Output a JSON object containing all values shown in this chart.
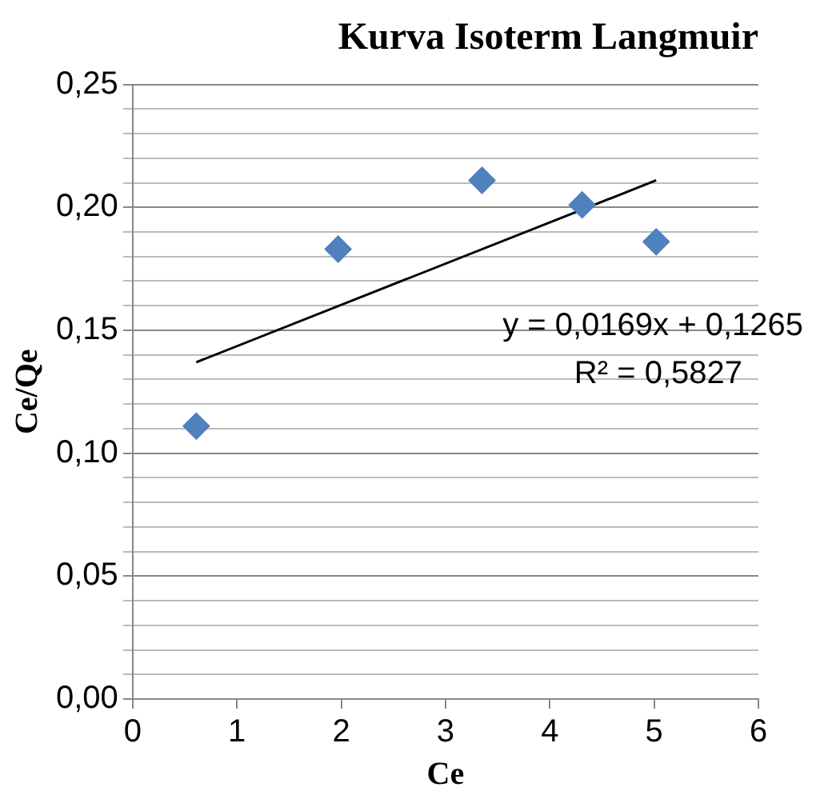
{
  "chart_data": {
    "type": "scatter",
    "title": "Kurva Isoterm Langmuir",
    "xlabel": "Ce",
    "ylabel": "Ce/Qe",
    "xlim": [
      0,
      6
    ],
    "xticks": [
      0,
      1,
      2,
      3,
      4,
      5,
      6
    ],
    "ylim": [
      0,
      0.25
    ],
    "yticks": [
      {
        "value": 0,
        "label": "0,00"
      },
      {
        "value": 0.01,
        "label": null
      },
      {
        "value": 0.02,
        "label": null
      },
      {
        "value": 0.03,
        "label": null
      },
      {
        "value": 0.04,
        "label": null
      },
      {
        "value": 0.05,
        "label": "0,05"
      },
      {
        "value": 0.06,
        "label": null
      },
      {
        "value": 0.07,
        "label": null
      },
      {
        "value": 0.08,
        "label": null
      },
      {
        "value": 0.09,
        "label": null
      },
      {
        "value": 0.1,
        "label": "0,10"
      },
      {
        "value": 0.11,
        "label": null
      },
      {
        "value": 0.12,
        "label": null
      },
      {
        "value": 0.13,
        "label": null
      },
      {
        "value": 0.14,
        "label": null
      },
      {
        "value": 0.15,
        "label": "0,15"
      },
      {
        "value": 0.16,
        "label": null
      },
      {
        "value": 0.17,
        "label": null
      },
      {
        "value": 0.18,
        "label": null
      },
      {
        "value": 0.19,
        "label": null
      },
      {
        "value": 0.2,
        "label": "0,20"
      },
      {
        "value": 0.21,
        "label": null
      },
      {
        "value": 0.22,
        "label": null
      },
      {
        "value": 0.23,
        "label": null
      },
      {
        "value": 0.24,
        "label": null
      },
      {
        "value": 0.25,
        "label": "0,25"
      }
    ],
    "grid": "y",
    "marker": "diamond",
    "series": [
      {
        "color": "#4f81bd",
        "x": [
          0.61,
          1.97,
          3.35,
          4.31,
          5.02
        ],
        "values": [
          0.111,
          0.183,
          0.211,
          0.201,
          0.186
        ]
      },
      {
        "type": "line",
        "color": "#000000",
        "marker": "none",
        "x": [
          0.61,
          5.02
        ],
        "values": [
          0.137,
          0.211
        ]
      }
    ],
    "annotations": [
      "y = 0,0169x + 0,1265",
      "R² = 0,5827"
    ]
  }
}
